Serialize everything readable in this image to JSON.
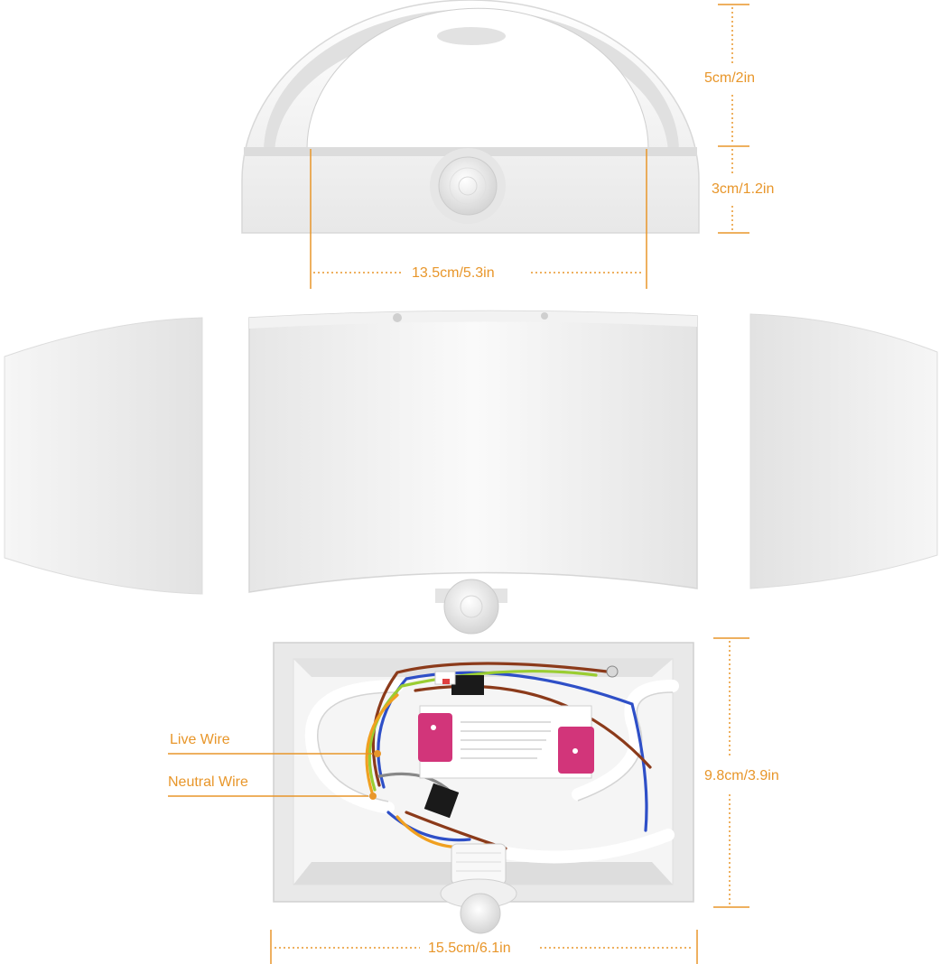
{
  "dimensions": {
    "top_height": "5cm/2in",
    "top_depth": "3cm/1.2in",
    "top_width": "13.5cm/5.3in",
    "box_height": "9.8cm/3.9in",
    "box_width": "15.5cm/6.1in"
  },
  "callouts": {
    "live_wire": "Live Wire",
    "neutral_wire": "Neutral Wire"
  },
  "colors": {
    "annotation": "#e8962a",
    "fixture": "#f3f3f3",
    "driver_accent": "#d2357a",
    "wire_brown": "#8b3a1a",
    "wire_blue": "#2e4fc7",
    "wire_yellow_green": "#9acd32",
    "wire_orange": "#f0a020",
    "wire_grey": "#888888"
  }
}
